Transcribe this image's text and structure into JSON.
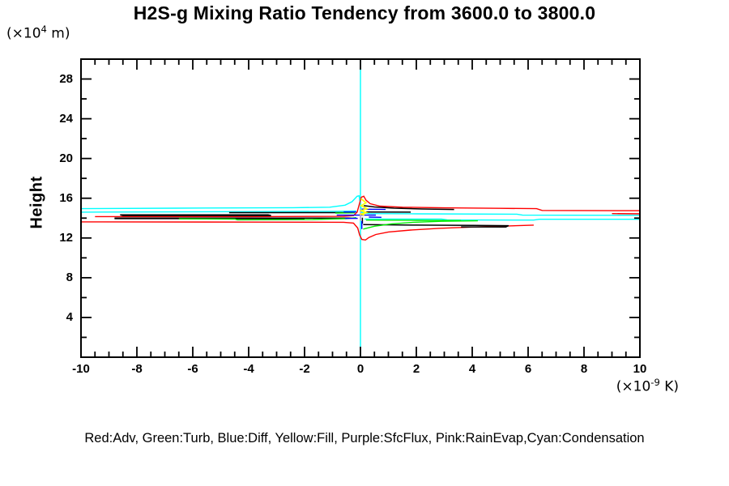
{
  "page": {
    "title": "H2S-g Mixing Ratio Tendency from 3600.0 to 3800.0"
  },
  "legend": {
    "text": "Red:Adv, Green:Turb, Blue:Diff, Yellow:Fill, Purple:SfcFlux, Pink:RainEvap,Cyan:Condensation"
  },
  "chart_data": {
    "type": "line",
    "title": "H2S-g Mixing Ratio Tendency from 3600.0 to 3800.0",
    "x_axis": {
      "unit_prefix": "(×10",
      "unit_exp": "-9",
      "unit_suffix": " K)",
      "min": -10,
      "max": 10,
      "major_tick_step": 2,
      "minor_tick_step": 0.5,
      "tick_labels": [
        -10,
        -8,
        -6,
        -4,
        -2,
        0,
        2,
        4,
        6,
        8,
        10
      ]
    },
    "y_axis": {
      "title": "Height",
      "unit_prefix": "(×10",
      "unit_exp": "4",
      "unit_suffix": " m)",
      "min": 0,
      "max": 30,
      "major_tick_step": 4,
      "minor_tick_step": 2,
      "tick_labels": [
        4,
        8,
        12,
        16,
        20,
        24,
        28
      ]
    },
    "zero_line": {
      "x": 0,
      "color": "#00ffff"
    },
    "grid": false,
    "legend_position": "bottom",
    "series": [
      {
        "name": "Condensation",
        "color": "#00ffff",
        "w": 1.4,
        "segments": [
          [
            [
              0,
              30
            ],
            [
              0,
              0
            ]
          ],
          [
            [
              -10,
              14.95
            ],
            [
              -6.6,
              15.0
            ],
            [
              -2.4,
              15.05
            ],
            [
              -1.1,
              15.1
            ],
            [
              -0.55,
              15.3
            ],
            [
              -0.3,
              15.65
            ],
            [
              -0.12,
              16.2
            ],
            [
              -0.05,
              16.25
            ],
            [
              0.0,
              15.4
            ],
            [
              0.05,
              14.55
            ],
            [
              0.3,
              14.45
            ],
            [
              2.0,
              14.43
            ],
            [
              5.6,
              14.4
            ],
            [
              5.8,
              14.3
            ],
            [
              10,
              14.28
            ]
          ],
          [
            [
              -10,
              14.6
            ],
            [
              -4.5,
              14.65
            ],
            [
              -0.8,
              14.68
            ],
            [
              -0.15,
              14.72
            ]
          ],
          [
            [
              0.15,
              13.9
            ],
            [
              2.9,
              13.9
            ],
            [
              3.1,
              13.82
            ],
            [
              6.2,
              13.8
            ],
            [
              6.4,
              13.88
            ],
            [
              10,
              13.88
            ]
          ]
        ]
      },
      {
        "name": "Adv",
        "color": "#ff0000",
        "w": 1.4,
        "segments": [
          [
            [
              -9.5,
              14.15
            ],
            [
              -4.0,
              14.15
            ],
            [
              -0.6,
              14.18
            ],
            [
              -0.25,
              14.25
            ],
            [
              -0.12,
              14.6
            ],
            [
              -0.05,
              15.3
            ],
            [
              0.03,
              16.1
            ],
            [
              0.12,
              16.2
            ],
            [
              0.2,
              15.8
            ],
            [
              0.35,
              15.45
            ],
            [
              0.7,
              15.2
            ],
            [
              1.5,
              15.1
            ],
            [
              3.0,
              15.03
            ],
            [
              5.0,
              14.98
            ],
            [
              6.3,
              14.95
            ],
            [
              6.5,
              14.77
            ],
            [
              10,
              14.75
            ]
          ],
          [
            [
              9.0,
              14.45
            ],
            [
              10,
              14.43
            ]
          ],
          [
            [
              -10,
              13.62
            ],
            [
              -4.0,
              13.6
            ],
            [
              -0.6,
              13.58
            ],
            [
              -0.25,
              13.5
            ],
            [
              -0.1,
              13.0
            ],
            [
              -0.03,
              12.3
            ],
            [
              0.05,
              11.85
            ],
            [
              0.18,
              11.8
            ],
            [
              0.3,
              12.05
            ],
            [
              0.55,
              12.35
            ],
            [
              1.0,
              12.6
            ],
            [
              1.8,
              12.8
            ],
            [
              2.8,
              12.97
            ],
            [
              4.0,
              13.1
            ],
            [
              5.2,
              13.2
            ],
            [
              6.2,
              13.3
            ]
          ]
        ]
      },
      {
        "name": "black",
        "color": "#000000",
        "w": 1.5,
        "segments": [
          [
            [
              -8.6,
              14.33
            ],
            [
              -3.3,
              14.33
            ],
            [
              -3.2,
              14.26
            ],
            [
              -8.5,
              14.26
            ],
            [
              -8.6,
              14.33
            ]
          ],
          [
            [
              -8.8,
              14.0
            ],
            [
              -0.25,
              14.0
            ]
          ],
          [
            [
              -8.8,
              13.95
            ],
            [
              -2.0,
              13.95
            ]
          ],
          [
            [
              -4.7,
              14.55
            ],
            [
              -0.3,
              14.55
            ]
          ],
          [
            [
              0.12,
              15.25
            ],
            [
              0.5,
              15.12
            ],
            [
              1.2,
              15.0
            ],
            [
              2.2,
              14.92
            ],
            [
              3.35,
              14.87
            ]
          ],
          [
            [
              0.2,
              14.62
            ],
            [
              1.8,
              14.6
            ]
          ],
          [
            [
              0.07,
              14.05
            ],
            [
              0.07,
              13.45
            ]
          ],
          [
            [
              0.1,
              13.35
            ],
            [
              2.0,
              13.3
            ],
            [
              4.0,
              13.27
            ],
            [
              5.3,
              13.24
            ],
            [
              5.2,
              13.1
            ],
            [
              3.6,
              13.12
            ]
          ]
        ]
      },
      {
        "name": "Turb",
        "color": "#00ee00",
        "w": 1.4,
        "segments": [
          [
            [
              -6.5,
              13.92
            ],
            [
              -4.5,
              13.9
            ],
            [
              -4.4,
              13.83
            ],
            [
              -1.7,
              13.86
            ],
            [
              -0.5,
              13.95
            ],
            [
              -0.15,
              14.05
            ]
          ],
          [
            [
              -0.9,
              14.5
            ],
            [
              -0.2,
              14.53
            ]
          ],
          [
            [
              0.1,
              12.9
            ],
            [
              0.5,
              13.18
            ],
            [
              1.1,
              13.42
            ],
            [
              1.9,
              13.58
            ],
            [
              2.9,
              13.68
            ],
            [
              4.2,
              13.73
            ]
          ],
          [
            [
              0.2,
              13.8
            ],
            [
              2.0,
              13.78
            ],
            [
              3.6,
              13.75
            ]
          ]
        ]
      },
      {
        "name": "Diff",
        "color": "#0000ff",
        "w": 1.4,
        "segments": [
          [
            [
              -0.85,
              14.3
            ],
            [
              0.55,
              14.3
            ]
          ],
          [
            [
              -0.6,
              14.62
            ],
            [
              -0.15,
              14.62
            ]
          ],
          [
            [
              0.05,
              14.9
            ],
            [
              0.9,
              14.87
            ]
          ],
          [
            [
              0.05,
              13.7
            ],
            [
              0.05,
              12.9
            ]
          ],
          [
            [
              -0.55,
              13.97
            ],
            [
              -0.1,
              13.97
            ]
          ],
          [
            [
              0.3,
              14.1
            ],
            [
              0.75,
              14.08
            ]
          ]
        ]
      },
      {
        "name": "SfcFlux",
        "color": "#c9a0dc",
        "w": 1.7,
        "segments": [
          [
            [
              0,
              14.95
            ],
            [
              0,
              13.75
            ]
          ]
        ]
      },
      {
        "name": "RainEvap",
        "color": "#ffc0cb",
        "w": 1.4,
        "segments": []
      },
      {
        "name": "Fill",
        "color": "#ffff00",
        "w": 1.7,
        "segments": [
          [
            [
              0.02,
              15.95
            ],
            [
              0.2,
              15.55
            ],
            [
              0.02,
              15.25
            ],
            [
              0.24,
              14.95
            ],
            [
              0.03,
              14.75
            ],
            [
              0.22,
              14.55
            ],
            [
              0.02,
              14.4
            ],
            [
              0.14,
              14.3
            ]
          ]
        ]
      }
    ]
  }
}
